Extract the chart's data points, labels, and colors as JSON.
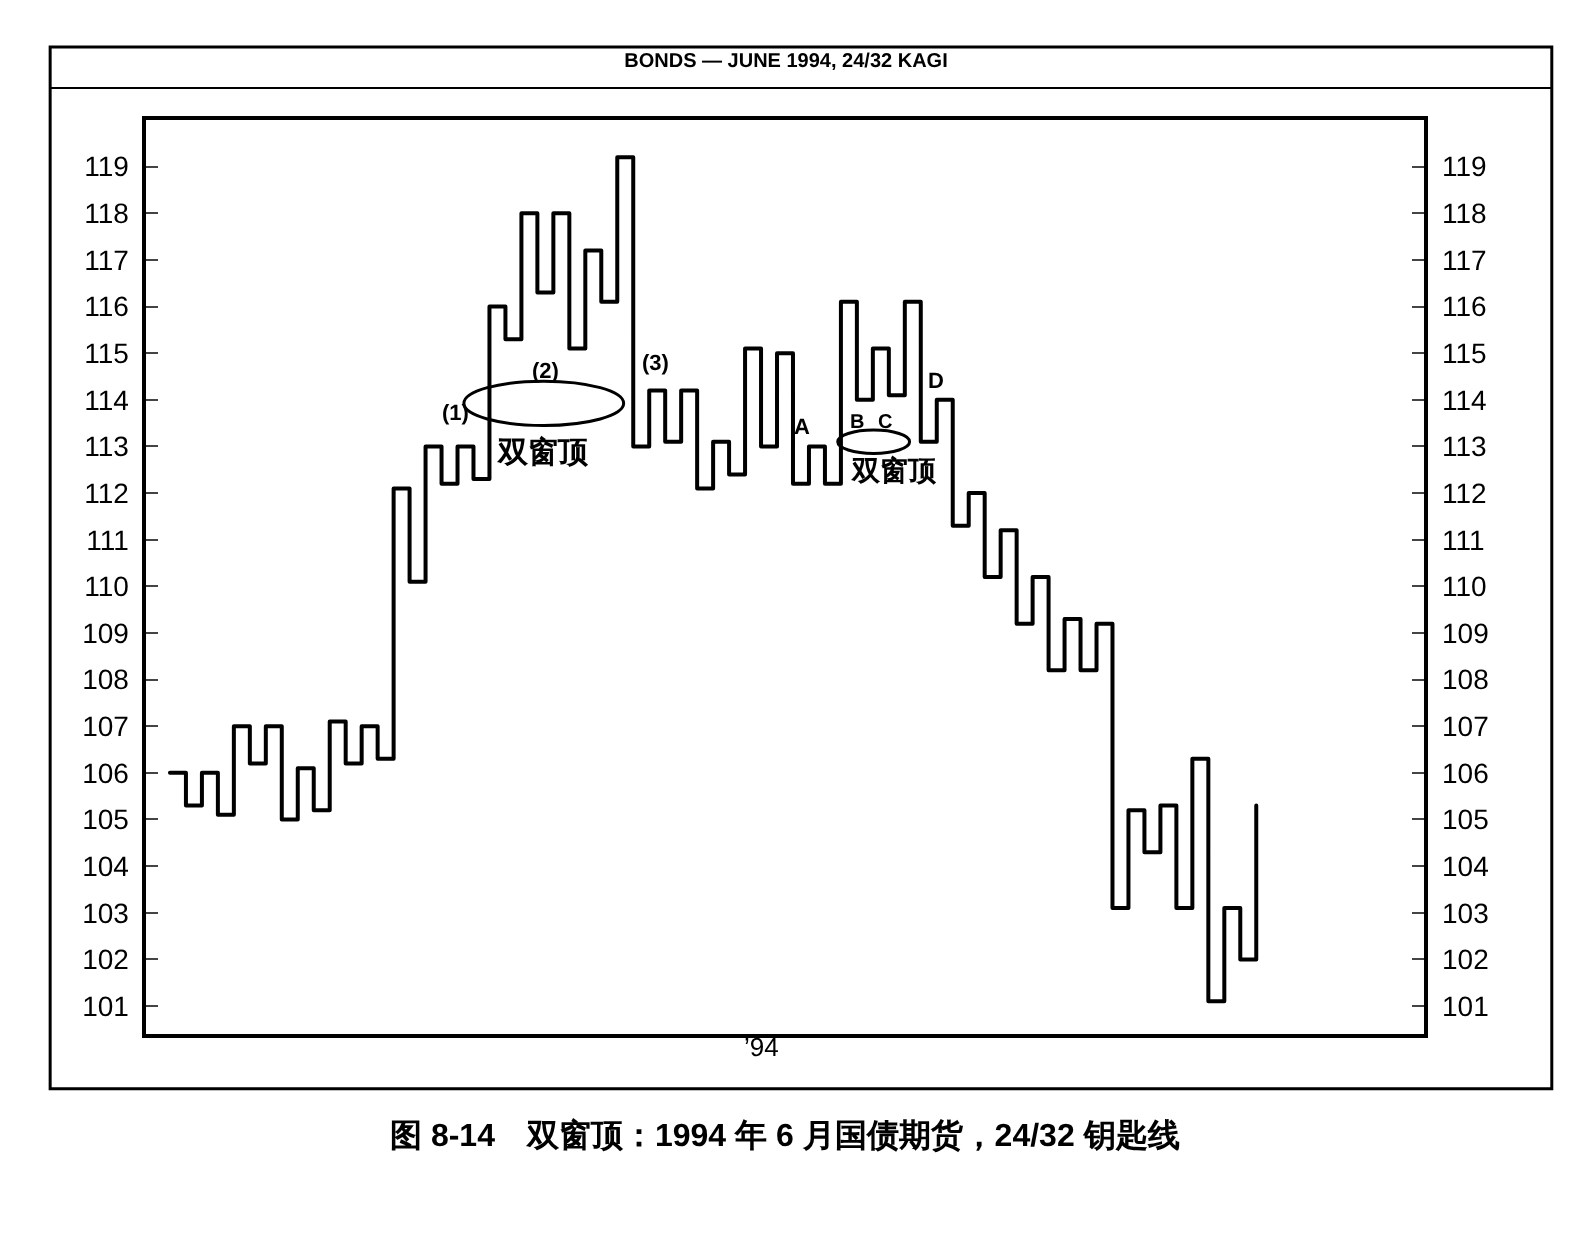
{
  "chart_data": {
    "type": "step",
    "title": "BONDS — JUNE 1994, 24/32 KAGI",
    "categories": [
      null,
      null,
      null,
      null,
      null,
      null,
      null,
      null,
      null,
      null,
      null,
      null,
      null,
      null,
      null,
      null,
      null,
      null,
      null,
      null,
      null,
      null,
      null,
      null,
      null,
      null,
      null,
      null,
      null,
      null,
      null,
      null,
      null,
      null,
      null,
      null,
      null,
      null,
      null,
      null,
      null,
      null,
      null,
      null,
      null,
      null,
      null,
      null,
      null,
      null,
      null,
      null,
      null,
      null,
      null,
      null,
      null,
      null,
      null,
      null,
      null,
      null,
      null,
      null,
      null,
      null,
      null,
      null,
      null
    ],
    "series": [
      {
        "color": "#000000",
        "values": [
          106,
          105.3,
          106,
          105.1,
          107,
          106.2,
          107,
          105.0,
          106.1,
          105.2,
          107.1,
          106.2,
          107,
          106.3,
          112.1,
          110.1,
          113,
          112.2,
          113,
          112.3,
          116,
          115.3,
          118,
          116.3,
          118,
          115.1,
          117.2,
          116.1,
          119.2,
          113.0,
          114.2,
          113.1,
          114.2,
          112.1,
          113.1,
          112.4,
          115.1,
          113.0,
          115.0,
          112.2,
          113.0,
          112.2,
          116.1,
          114.0,
          115.1,
          114.1,
          116.1,
          113.1,
          114.0,
          111.3,
          112.0,
          110.2,
          111.2,
          109.2,
          110.2,
          108.2,
          109.3,
          108.2,
          109.2,
          103.1,
          105.2,
          104.3,
          105.3,
          103.1,
          106.3,
          101.1,
          103.1,
          102.0,
          105.3
        ]
      }
    ],
    "ylim": [
      100.4,
      120.0
    ],
    "yticks": [
      101,
      102,
      103,
      104,
      105,
      106,
      107,
      108,
      109,
      110,
      111,
      112,
      113,
      114,
      115,
      116,
      117,
      118,
      119
    ],
    "y2lim": [
      100.4,
      120.0
    ],
    "y2ticks": [
      101,
      102,
      103,
      104,
      105,
      106,
      107,
      108,
      109,
      110,
      111,
      112,
      113,
      114,
      115,
      116,
      117,
      118,
      119
    ],
    "marker": "none",
    "line_style": "solid",
    "annotations": [
      "(1)",
      "(2)",
      "(3)",
      "双窗顶",
      "A",
      "B",
      "C",
      "D",
      "双窗顶",
      "’94",
      "图 8-14　双窗顶：1994 年 6 月国债期货，24/32 钥匙线"
    ]
  }
}
